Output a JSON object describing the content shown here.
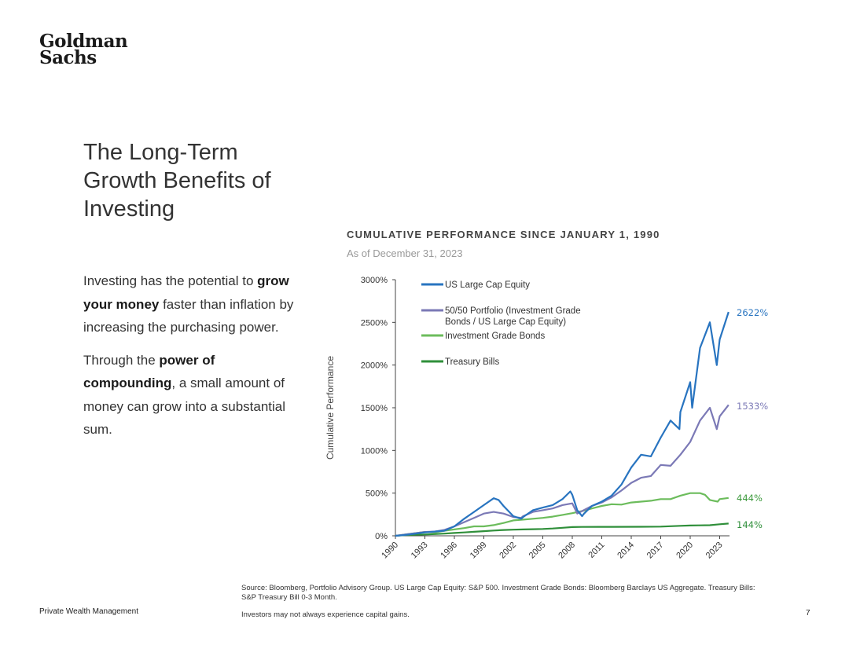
{
  "brand": {
    "line1": "Goldman",
    "line2": "Sachs"
  },
  "heading": {
    "line1": "The Long-Term",
    "line2": "Growth Benefits of",
    "line3": "Investing"
  },
  "body": {
    "p1_pre": "Investing has the potential to ",
    "p1_bold": "grow your money",
    "p1_post": " faster than inflation by increasing the purchasing power.",
    "p2_pre": "Through the ",
    "p2_bold": "power of compounding",
    "p2_post": ", a small amount of money can grow into a substantial sum."
  },
  "footer": {
    "division": "Private Wealth Management",
    "source": "Source: Bloomberg, Portfolio Advisory Group. US Large Cap Equity: S&P 500. Investment Grade Bonds: Bloomberg Barclays US Aggregate. Treasury Bills: S&P Treasury Bill 0-3 Month.",
    "disclaimer": "Investors may not always experience capital gains.",
    "page_number": "7"
  },
  "chart_data": {
    "type": "line",
    "title": "CUMULATIVE PERFORMANCE SINCE JANUARY 1, 1990",
    "subtitle": "As of December 31, 2023",
    "ylabel": "Cumulative Performance",
    "xlabel": "",
    "xlim": [
      1990,
      2024
    ],
    "ylim": [
      0,
      3000
    ],
    "x_ticks": [
      "1990",
      "1993",
      "1996",
      "1999",
      "2002",
      "2005",
      "2008",
      "2011",
      "2014",
      "2017",
      "2020",
      "2023"
    ],
    "y_ticks": [
      "0%",
      "500%",
      "1000%",
      "1500%",
      "2000%",
      "2500%",
      "3000%"
    ],
    "legend_position": "top-left",
    "series": [
      {
        "name": "US Large Cap Equity",
        "color": "#2874c0",
        "end_label": "2622%",
        "x": [
          1990,
          1991,
          1992,
          1993,
          1994,
          1995,
          1996,
          1997,
          1998,
          1999,
          2000,
          2000.5,
          2001,
          2002,
          2002.8,
          2003,
          2004,
          2005,
          2006,
          2007,
          2007.8,
          2008,
          2008.5,
          2009,
          2009.2,
          2010,
          2011,
          2012,
          2013,
          2014,
          2015,
          2016,
          2017,
          2018,
          2018.9,
          2019,
          2020,
          2020.2,
          2021,
          2022,
          2022.7,
          2023,
          2023.9
        ],
        "y": [
          0,
          10,
          25,
          40,
          50,
          60,
          110,
          200,
          280,
          360,
          440,
          420,
          350,
          230,
          200,
          220,
          300,
          330,
          360,
          430,
          520,
          480,
          300,
          230,
          260,
          350,
          400,
          470,
          600,
          800,
          950,
          930,
          1150,
          1350,
          1250,
          1450,
          1800,
          1500,
          2200,
          2500,
          2000,
          2300,
          2622
        ]
      },
      {
        "name": "50/50 Portfolio (Investment Grade Bonds / US Large Cap Equity)",
        "color": "#7b79b6",
        "end_label": "1533%",
        "x": [
          1990,
          1991,
          1992,
          1993,
          1994,
          1995,
          1996,
          1997,
          1998,
          1999,
          2000,
          2001,
          2002,
          2002.8,
          2003,
          2004,
          2005,
          2006,
          2007,
          2008,
          2008.5,
          2009,
          2010,
          2011,
          2012,
          2013,
          2014,
          2015,
          2016,
          2017,
          2018,
          2019,
          2020,
          2021,
          2022,
          2022.7,
          2023,
          2023.9
        ],
        "y": [
          0,
          15,
          30,
          45,
          50,
          70,
          110,
          160,
          210,
          260,
          280,
          260,
          220,
          210,
          230,
          280,
          300,
          320,
          360,
          380,
          260,
          290,
          350,
          390,
          450,
          530,
          620,
          680,
          700,
          830,
          820,
          950,
          1100,
          1350,
          1500,
          1250,
          1400,
          1533
        ]
      },
      {
        "name": "Investment Grade Bonds",
        "color": "#6cbc5c",
        "end_label": "444%",
        "x": [
          1990,
          1991,
          1992,
          1993,
          1994,
          1995,
          1996,
          1997,
          1998,
          1999,
          2000,
          2001,
          2002,
          2003,
          2004,
          2005,
          2006,
          2007,
          2008,
          2009,
          2010,
          2011,
          2012,
          2013,
          2014,
          2015,
          2016,
          2017,
          2018,
          2019,
          2020,
          2021,
          2021.5,
          2022,
          2022.8,
          2023,
          2023.9
        ],
        "y": [
          0,
          15,
          30,
          45,
          40,
          60,
          75,
          90,
          110,
          110,
          125,
          150,
          180,
          190,
          200,
          210,
          225,
          245,
          265,
          290,
          320,
          350,
          370,
          365,
          390,
          400,
          410,
          430,
          430,
          470,
          500,
          500,
          480,
          420,
          400,
          430,
          444
        ]
      },
      {
        "name": "Treasury Bills",
        "color": "#2f8f3a",
        "end_label": "144%",
        "x": [
          1990,
          1991,
          1992,
          1993,
          1994,
          1995,
          1996,
          1997,
          1998,
          1999,
          2000,
          2001,
          2002,
          2003,
          2004,
          2005,
          2006,
          2007,
          2008,
          2009,
          2012,
          2015,
          2017,
          2018,
          2019,
          2020,
          2021,
          2022,
          2023,
          2023.9
        ],
        "y": [
          0,
          7,
          12,
          16,
          20,
          26,
          33,
          40,
          47,
          54,
          62,
          68,
          72,
          75,
          77,
          80,
          86,
          94,
          102,
          104,
          105,
          106,
          108,
          112,
          117,
          121,
          122,
          124,
          135,
          144
        ]
      }
    ]
  }
}
